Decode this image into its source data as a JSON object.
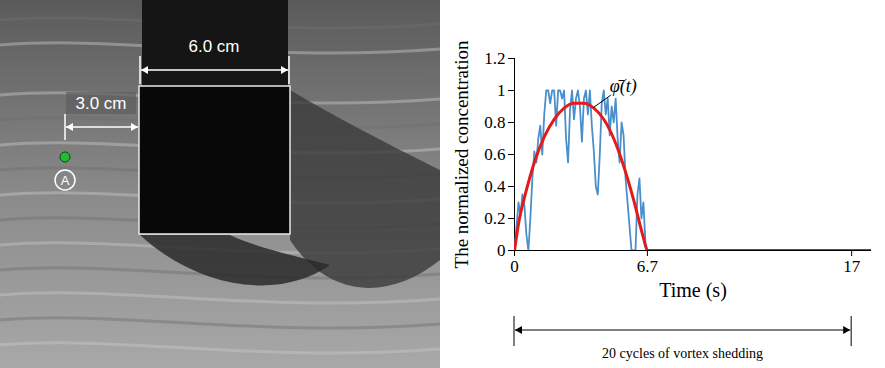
{
  "image": {
    "labels": {
      "width": "6.0 cm",
      "gap": "3.0 cm",
      "point": "A"
    }
  },
  "chart_data": {
    "type": "line",
    "xlabel": "Time (s)",
    "ylabel": "The normalized concentration",
    "xlim": [
      0,
      18
    ],
    "ylim": [
      0,
      1.2
    ],
    "xticks": [
      0,
      6.7,
      17
    ],
    "yticks": [
      0,
      0.2,
      0.4,
      0.6,
      0.8,
      1,
      1.2
    ],
    "grid": false,
    "series": [
      {
        "color": "#4a8fcc",
        "x": [
          0,
          0.1,
          0.2,
          0.3,
          0.4,
          0.5,
          0.6,
          0.7,
          0.8,
          0.9,
          1.0,
          1.1,
          1.2,
          1.3,
          1.4,
          1.5,
          1.6,
          1.7,
          1.8,
          1.9,
          2.0,
          2.1,
          2.2,
          2.3,
          2.4,
          2.5,
          2.6,
          2.7,
          2.8,
          2.9,
          3.0,
          3.1,
          3.2,
          3.3,
          3.4,
          3.5,
          3.6,
          3.7,
          3.8,
          3.9,
          4.0,
          4.1,
          4.2,
          4.3,
          4.4,
          4.5,
          4.6,
          4.7,
          4.8,
          4.9,
          5.0,
          5.1,
          5.2,
          5.3,
          5.4,
          5.5,
          5.6,
          5.7,
          5.8,
          5.9,
          6.0,
          6.1,
          6.2,
          6.3,
          6.4,
          6.5,
          6.6,
          6.7,
          6.8
        ],
        "values": [
          0,
          0.15,
          0.3,
          0.22,
          0.35,
          0.28,
          0.1,
          0,
          0.2,
          0.45,
          0.62,
          0.55,
          0.7,
          0.78,
          0.6,
          0.85,
          1.0,
          1.0,
          0.92,
          1.0,
          1.0,
          0.78,
          1.0,
          1.0,
          0.95,
          1.0,
          0.7,
          0.55,
          0.88,
          1.0,
          0.82,
          0.95,
          1.0,
          0.9,
          0.68,
          0.95,
          1.0,
          0.85,
          1.0,
          0.78,
          0.62,
          0.4,
          0.35,
          0.6,
          0.92,
          1.0,
          0.85,
          0.95,
          0.72,
          0.9,
          0.8,
          0.95,
          0.7,
          0.55,
          0.8,
          0.72,
          0.45,
          0.3,
          0.15,
          0,
          0,
          0,
          0.35,
          0.45,
          0.2,
          0.3,
          0.05,
          0,
          0
        ]
      },
      {
        "name": "φ̄(t)",
        "color": "#e31b1b",
        "x": [
          0,
          0.25,
          0.5,
          1,
          1.5,
          2,
          2.5,
          3,
          3.5,
          4,
          4.5,
          5,
          5.5,
          6,
          6.5,
          6.7,
          17,
          18
        ],
        "values": [
          0,
          0.2,
          0.33,
          0.55,
          0.71,
          0.82,
          0.89,
          0.92,
          0.92,
          0.89,
          0.82,
          0.7,
          0.53,
          0.32,
          0.08,
          0,
          0,
          0
        ]
      }
    ],
    "annotations": [
      {
        "text": "20 cycles of vortex shedding",
        "x": [
          0,
          17
        ]
      }
    ]
  }
}
